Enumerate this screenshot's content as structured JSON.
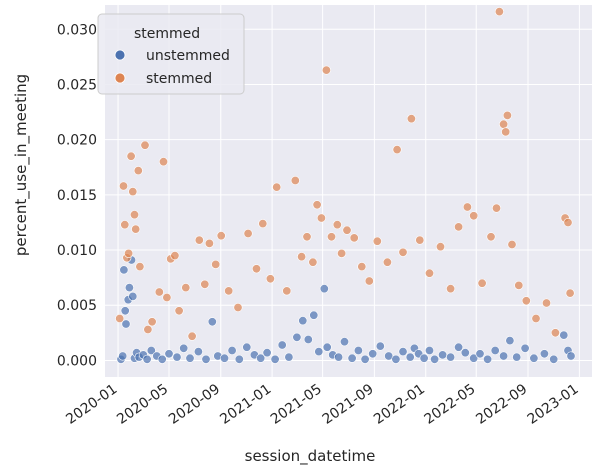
{
  "chart_data": {
    "type": "scatter",
    "xlabel": "session_datetime",
    "ylabel": "percent_use_in_meeting",
    "xlim": [
      "2019-12-01",
      "2023-01-31"
    ],
    "ylim": [
      -0.0015,
      0.0322
    ],
    "x_ticks": [
      "2020-01",
      "2020-05",
      "2020-09",
      "2021-01",
      "2021-05",
      "2021-09",
      "2022-01",
      "2022-05",
      "2022-09",
      "2023-01"
    ],
    "y_ticks": [
      "0.000",
      "0.005",
      "0.010",
      "0.015",
      "0.020",
      "0.025",
      "0.030"
    ],
    "y_tick_values": [
      0,
      0.005,
      0.01,
      0.015,
      0.02,
      0.025,
      0.03
    ],
    "legend": {
      "title": "stemmed",
      "position": "upper-left",
      "entries": [
        "unstemmed",
        "stemmed"
      ]
    },
    "colors": {
      "unstemmed": "#4c72b0",
      "stemmed": "#dd8452",
      "background": "#eaeaf2",
      "grid": "#ffffff"
    },
    "series": [
      {
        "name": "unstemmed",
        "points": [
          [
            "2020-01-08",
            0.0001
          ],
          [
            "2020-01-12",
            0.0004
          ],
          [
            "2020-01-15",
            0.0082
          ],
          [
            "2020-01-18",
            0.0045
          ],
          [
            "2020-01-20",
            0.0033
          ],
          [
            "2020-01-25",
            0.0055
          ],
          [
            "2020-01-28",
            0.0066
          ],
          [
            "2020-02-02",
            0.0091
          ],
          [
            "2020-02-05",
            0.0058
          ],
          [
            "2020-02-09",
            0.0002
          ],
          [
            "2020-02-14",
            0.0007
          ],
          [
            "2020-02-20",
            0.0003
          ],
          [
            "2020-03-01",
            0.0005
          ],
          [
            "2020-03-10",
            0.0001
          ],
          [
            "2020-03-20",
            0.0009
          ],
          [
            "2020-04-02",
            0.0004
          ],
          [
            "2020-04-15",
            0.0001
          ],
          [
            "2020-05-01",
            0.0006
          ],
          [
            "2020-05-20",
            0.0003
          ],
          [
            "2020-06-05",
            0.0011
          ],
          [
            "2020-06-20",
            0.0002
          ],
          [
            "2020-07-10",
            0.0008
          ],
          [
            "2020-07-28",
            0.0001
          ],
          [
            "2020-08-12",
            0.0035
          ],
          [
            "2020-08-25",
            0.0004
          ],
          [
            "2020-09-10",
            0.0002
          ],
          [
            "2020-09-28",
            0.0009
          ],
          [
            "2020-10-15",
            0.0001
          ],
          [
            "2020-11-02",
            0.0012
          ],
          [
            "2020-11-20",
            0.0005
          ],
          [
            "2020-12-05",
            0.0002
          ],
          [
            "2020-12-20",
            0.0007
          ],
          [
            "2021-01-08",
            0.0001
          ],
          [
            "2021-01-25",
            0.0014
          ],
          [
            "2021-02-10",
            0.0003
          ],
          [
            "2021-03-01",
            0.0021
          ],
          [
            "2021-03-15",
            0.0036
          ],
          [
            "2021-03-28",
            0.0019
          ],
          [
            "2021-04-10",
            0.0041
          ],
          [
            "2021-04-22",
            0.0008
          ],
          [
            "2021-05-05",
            0.0065
          ],
          [
            "2021-05-12",
            0.0012
          ],
          [
            "2021-05-25",
            0.0005
          ],
          [
            "2021-06-08",
            0.0003
          ],
          [
            "2021-06-22",
            0.0017
          ],
          [
            "2021-07-10",
            0.0002
          ],
          [
            "2021-07-25",
            0.0009
          ],
          [
            "2021-08-10",
            0.0001
          ],
          [
            "2021-08-28",
            0.0006
          ],
          [
            "2021-09-15",
            0.0013
          ],
          [
            "2021-10-05",
            0.0004
          ],
          [
            "2021-10-22",
            0.0001
          ],
          [
            "2021-11-08",
            0.0008
          ],
          [
            "2021-11-25",
            0.0003
          ],
          [
            "2021-12-05",
            0.0011
          ],
          [
            "2021-12-15",
            0.0006
          ],
          [
            "2021-12-28",
            0.0002
          ],
          [
            "2022-01-10",
            0.0009
          ],
          [
            "2022-01-22",
            0.0001
          ],
          [
            "2022-02-10",
            0.0005
          ],
          [
            "2022-03-01",
            0.0003
          ],
          [
            "2022-03-20",
            0.0012
          ],
          [
            "2022-04-05",
            0.0007
          ],
          [
            "2022-04-25",
            0.0002
          ],
          [
            "2022-05-10",
            0.0006
          ],
          [
            "2022-05-28",
            0.0001
          ],
          [
            "2022-06-15",
            0.0009
          ],
          [
            "2022-07-05",
            0.0004
          ],
          [
            "2022-07-20",
            0.0018
          ],
          [
            "2022-08-05",
            0.0003
          ],
          [
            "2022-08-25",
            0.0011
          ],
          [
            "2022-09-15",
            0.0002
          ],
          [
            "2022-10-10",
            0.0006
          ],
          [
            "2022-11-01",
            0.0001
          ],
          [
            "2022-11-25",
            0.0023
          ],
          [
            "2022-12-05",
            0.0009
          ],
          [
            "2022-12-12",
            0.0004
          ]
        ]
      },
      {
        "name": "stemmed",
        "points": [
          [
            "2020-01-05",
            0.0038
          ],
          [
            "2020-01-14",
            0.0158
          ],
          [
            "2020-01-17",
            0.0123
          ],
          [
            "2020-01-22",
            0.0093
          ],
          [
            "2020-01-26",
            0.0097
          ],
          [
            "2020-02-01",
            0.0185
          ],
          [
            "2020-02-05",
            0.0153
          ],
          [
            "2020-02-09",
            0.0132
          ],
          [
            "2020-02-12",
            0.0119
          ],
          [
            "2020-02-18",
            0.0172
          ],
          [
            "2020-02-22",
            0.0085
          ],
          [
            "2020-03-05",
            0.0195
          ],
          [
            "2020-03-12",
            0.0028
          ],
          [
            "2020-03-22",
            0.0035
          ],
          [
            "2020-04-08",
            0.0062
          ],
          [
            "2020-04-18",
            0.018
          ],
          [
            "2020-04-26",
            0.0057
          ],
          [
            "2020-05-05",
            0.0092
          ],
          [
            "2020-05-15",
            0.0095
          ],
          [
            "2020-05-25",
            0.0045
          ],
          [
            "2020-06-10",
            0.0066
          ],
          [
            "2020-06-25",
            0.0022
          ],
          [
            "2020-07-12",
            0.0109
          ],
          [
            "2020-07-25",
            0.0069
          ],
          [
            "2020-08-05",
            0.0106
          ],
          [
            "2020-08-20",
            0.0087
          ],
          [
            "2020-09-02",
            0.0113
          ],
          [
            "2020-09-20",
            0.0063
          ],
          [
            "2020-10-12",
            0.0048
          ],
          [
            "2020-11-05",
            0.0115
          ],
          [
            "2020-11-25",
            0.0083
          ],
          [
            "2020-12-10",
            0.0124
          ],
          [
            "2020-12-28",
            0.0074
          ],
          [
            "2021-01-12",
            0.0157
          ],
          [
            "2021-02-05",
            0.0063
          ],
          [
            "2021-02-25",
            0.0163
          ],
          [
            "2021-03-12",
            0.0094
          ],
          [
            "2021-03-25",
            0.0112
          ],
          [
            "2021-04-08",
            0.0089
          ],
          [
            "2021-04-18",
            0.0141
          ],
          [
            "2021-04-28",
            0.0129
          ],
          [
            "2021-05-10",
            0.0263
          ],
          [
            "2021-05-22",
            0.0112
          ],
          [
            "2021-06-05",
            0.0123
          ],
          [
            "2021-06-15",
            0.0097
          ],
          [
            "2021-06-28",
            0.0118
          ],
          [
            "2021-07-15",
            0.0111
          ],
          [
            "2021-08-02",
            0.0085
          ],
          [
            "2021-08-20",
            0.0072
          ],
          [
            "2021-09-08",
            0.0108
          ],
          [
            "2021-10-02",
            0.0089
          ],
          [
            "2021-10-25",
            0.0191
          ],
          [
            "2021-11-08",
            0.0098
          ],
          [
            "2021-11-28",
            0.0219
          ],
          [
            "2021-12-18",
            0.0109
          ],
          [
            "2022-01-10",
            0.0079
          ],
          [
            "2022-02-05",
            0.0103
          ],
          [
            "2022-03-01",
            0.0065
          ],
          [
            "2022-03-20",
            0.0121
          ],
          [
            "2022-04-10",
            0.0139
          ],
          [
            "2022-04-25",
            0.0131
          ],
          [
            "2022-05-15",
            0.007
          ],
          [
            "2022-06-05",
            0.0112
          ],
          [
            "2022-06-18",
            0.0138
          ],
          [
            "2022-06-25",
            0.0316
          ],
          [
            "2022-07-05",
            0.0214
          ],
          [
            "2022-07-10",
            0.0207
          ],
          [
            "2022-07-14",
            0.0222
          ],
          [
            "2022-07-25",
            0.0105
          ],
          [
            "2022-08-10",
            0.0068
          ],
          [
            "2022-08-28",
            0.0054
          ],
          [
            "2022-09-20",
            0.0038
          ],
          [
            "2022-10-15",
            0.0052
          ],
          [
            "2022-11-05",
            0.0025
          ],
          [
            "2022-11-28",
            0.0129
          ],
          [
            "2022-12-05",
            0.0125
          ],
          [
            "2022-12-10",
            0.0061
          ]
        ]
      }
    ]
  }
}
